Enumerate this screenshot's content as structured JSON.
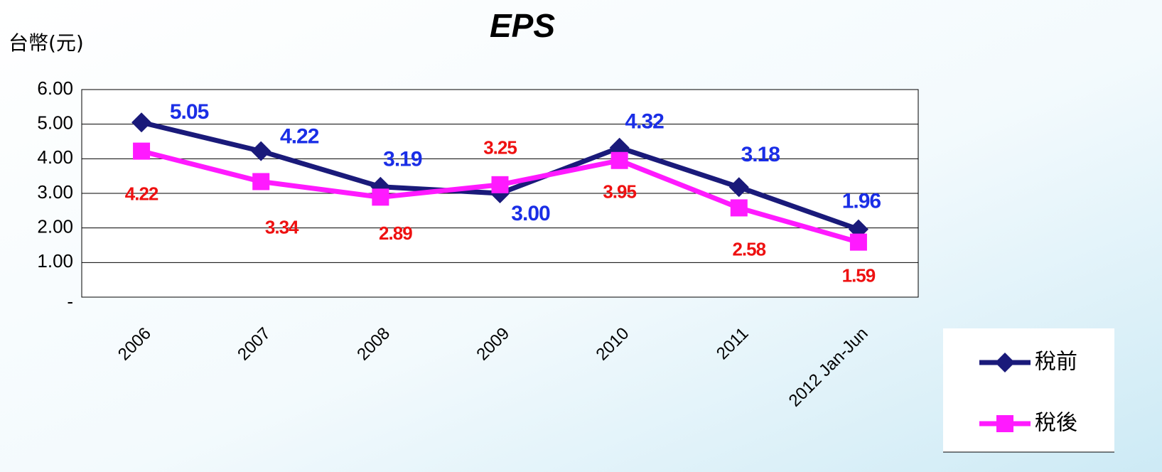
{
  "chart_data": {
    "type": "line",
    "title": "EPS",
    "y_label": "台幣(元)",
    "categories": [
      "2006",
      "2007",
      "2008",
      "2009",
      "2010",
      "2011",
      "2012 Jan-Jun"
    ],
    "series": [
      {
        "name": "稅前",
        "color": "#1a1a7a",
        "label_color": "#1a2ee6",
        "marker": "diamond",
        "values": [
          5.05,
          4.22,
          3.19,
          3.0,
          4.32,
          3.18,
          1.96
        ],
        "value_labels": [
          "5.05",
          "4.22",
          "3.19",
          "3.00",
          "4.32",
          "3.18",
          "1.96"
        ]
      },
      {
        "name": "稅後",
        "color": "#ff1aff",
        "label_color": "#ee1111",
        "marker": "square",
        "values": [
          4.22,
          3.34,
          2.89,
          3.25,
          3.95,
          2.58,
          1.59
        ],
        "value_labels": [
          "4.22",
          "3.34",
          "2.89",
          "3.25",
          "3.95",
          "2.58",
          "1.59"
        ]
      }
    ],
    "ylim": [
      0,
      6
    ],
    "yticks": [
      {
        "value": 0,
        "label": "-"
      },
      {
        "value": 1,
        "label": "1.00"
      },
      {
        "value": 2,
        "label": "2.00"
      },
      {
        "value": 3,
        "label": "3.00"
      },
      {
        "value": 4,
        "label": "4.00"
      },
      {
        "value": 5,
        "label": "5.00"
      },
      {
        "value": 6,
        "label": "6.00"
      }
    ],
    "grid": true
  }
}
